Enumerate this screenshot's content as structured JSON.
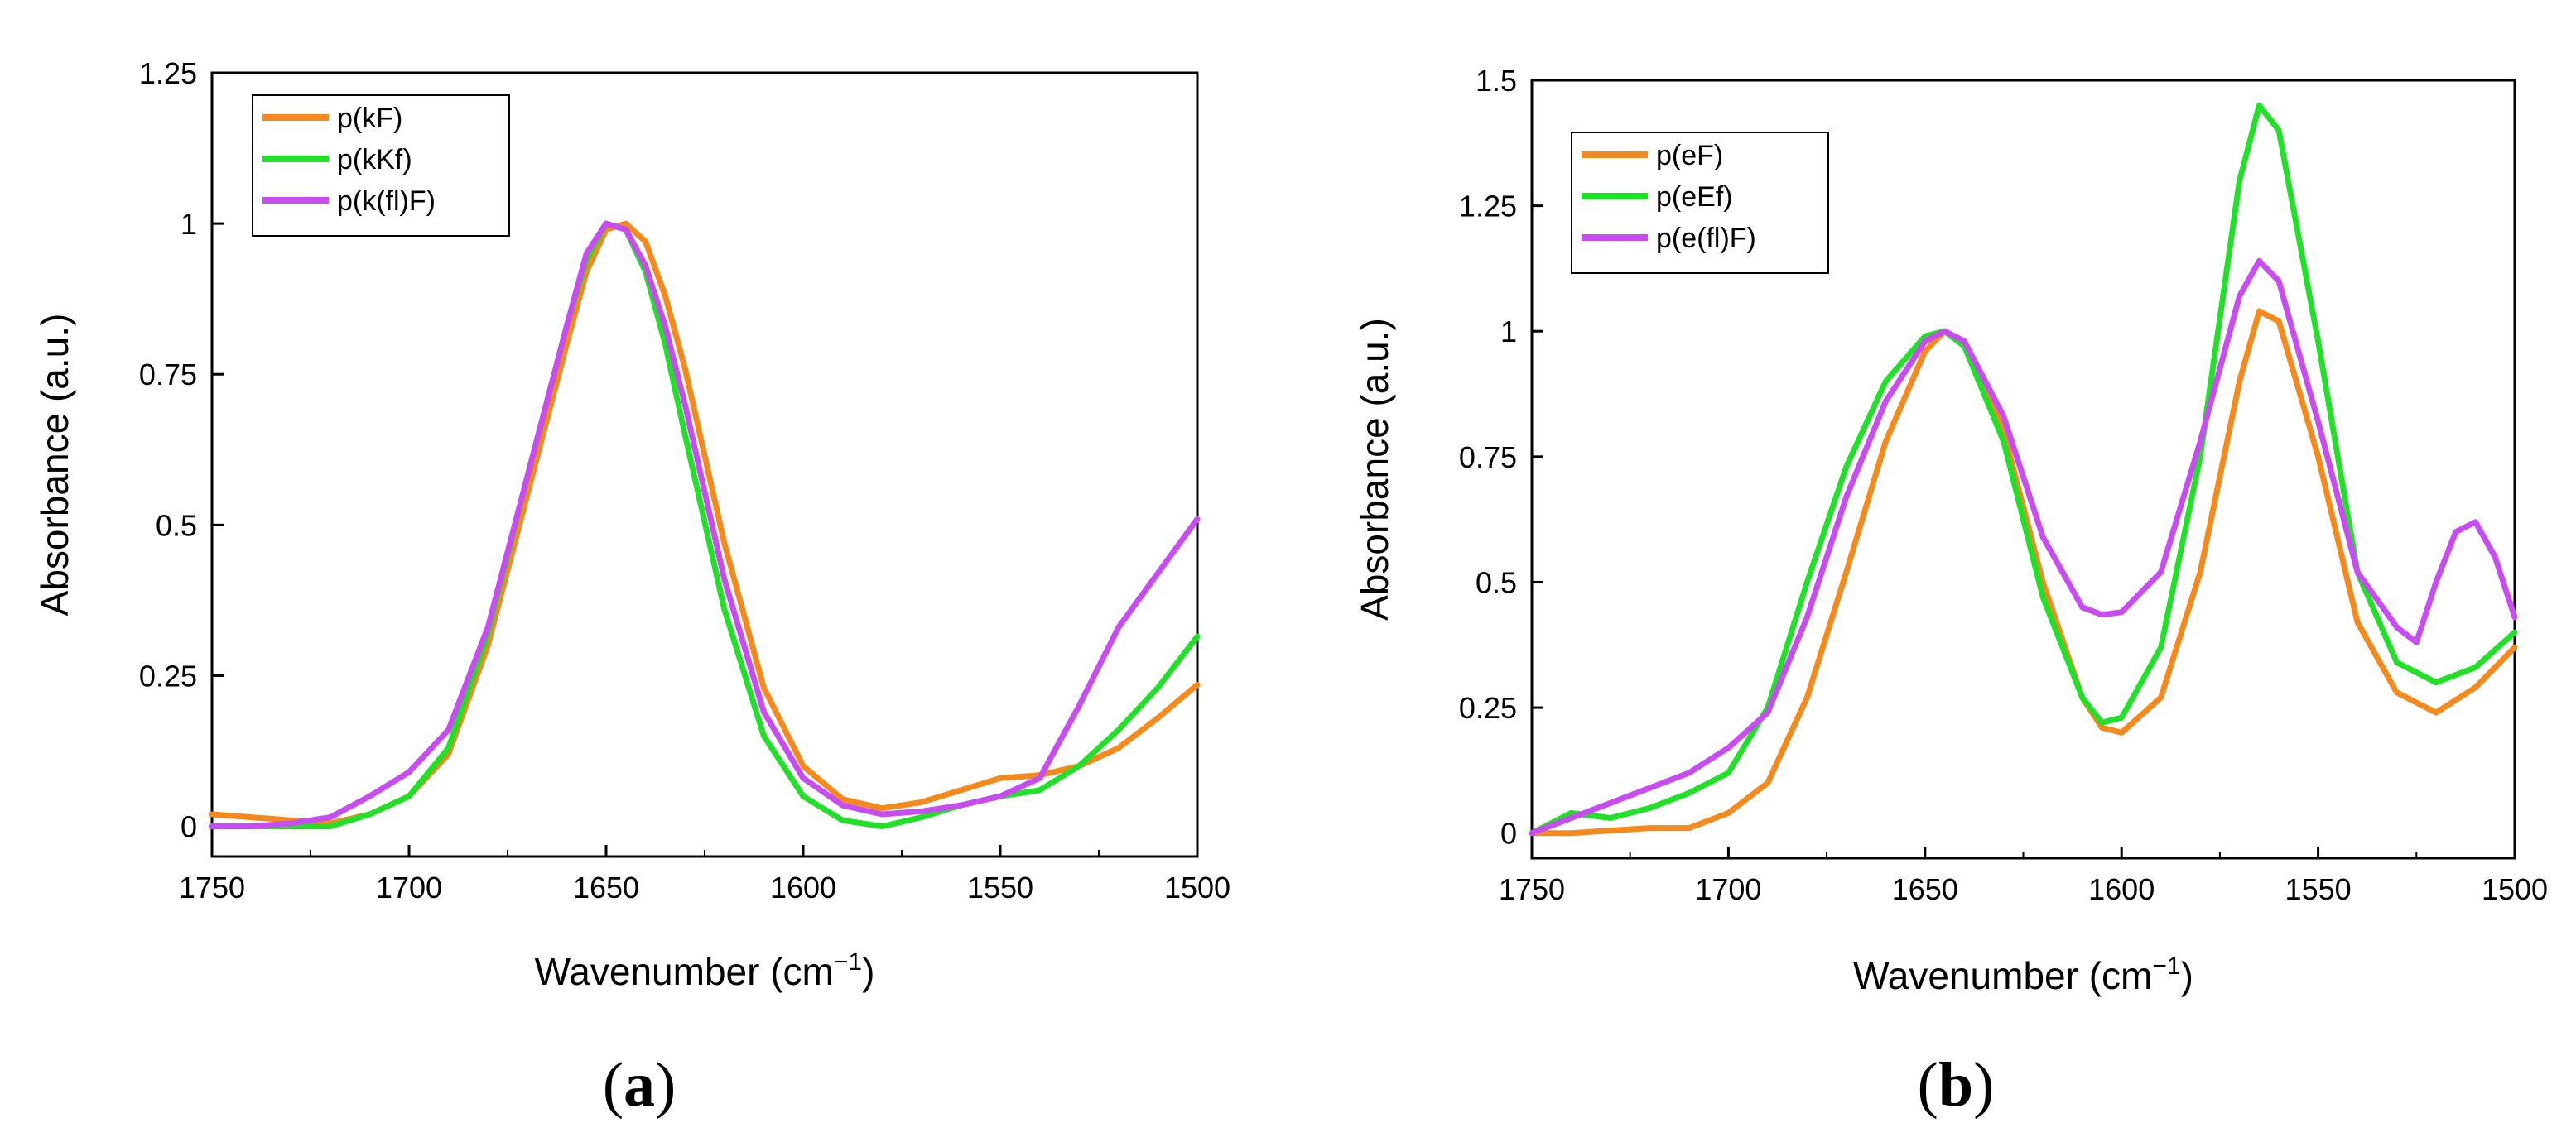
{
  "colors": {
    "orange": "#f4891c",
    "green": "#22e02a",
    "magenta": "#c84df0",
    "axis": "#000000"
  },
  "captions": {
    "a_label": "a",
    "b_label": "b",
    "open": "(",
    "close": ")"
  },
  "chart_data": [
    {
      "type": "line",
      "panel": "a",
      "xlabel": "Wavenumber (cm",
      "xlabel_sup": "−1",
      "xlabel_close": ")",
      "ylabel": "Absorbance (a.u.)",
      "xlim": [
        1750,
        1500
      ],
      "ylim": [
        -0.05,
        1.25
      ],
      "xticks": [
        1750,
        1700,
        1650,
        1600,
        1550,
        1500
      ],
      "xtick_labels": [
        "1750",
        "1700",
        "1650",
        "1600",
        "1550",
        "1500"
      ],
      "yticks": [
        0,
        0.25,
        0.5,
        0.75,
        1,
        1.25
      ],
      "ytick_labels": [
        "0",
        "0.25",
        "0.5",
        "0.75",
        "1",
        "1.25"
      ],
      "legend": "top-left",
      "series": [
        {
          "name": "p(kF)",
          "color": "#f4891c",
          "x": [
            1750,
            1740,
            1730,
            1720,
            1710,
            1700,
            1690,
            1680,
            1670,
            1660,
            1655,
            1650,
            1645,
            1640,
            1635,
            1630,
            1620,
            1610,
            1600,
            1590,
            1580,
            1570,
            1560,
            1550,
            1540,
            1530,
            1520,
            1510,
            1500
          ],
          "y": [
            0.02,
            0.015,
            0.01,
            0.005,
            0.02,
            0.05,
            0.12,
            0.3,
            0.55,
            0.8,
            0.92,
            0.99,
            1.0,
            0.97,
            0.88,
            0.76,
            0.47,
            0.23,
            0.1,
            0.045,
            0.03,
            0.04,
            0.06,
            0.08,
            0.085,
            0.1,
            0.13,
            0.18,
            0.235
          ]
        },
        {
          "name": "p(kKf)",
          "color": "#22e02a",
          "x": [
            1750,
            1740,
            1730,
            1720,
            1710,
            1700,
            1690,
            1680,
            1670,
            1660,
            1655,
            1650,
            1645,
            1640,
            1635,
            1630,
            1620,
            1610,
            1600,
            1590,
            1580,
            1570,
            1560,
            1550,
            1540,
            1530,
            1520,
            1510,
            1500
          ],
          "y": [
            0.0,
            0.0,
            0.0,
            0.0,
            0.02,
            0.05,
            0.13,
            0.32,
            0.58,
            0.83,
            0.94,
            1.0,
            0.99,
            0.92,
            0.8,
            0.65,
            0.36,
            0.15,
            0.05,
            0.01,
            0.0,
            0.015,
            0.035,
            0.05,
            0.06,
            0.1,
            0.16,
            0.23,
            0.315
          ]
        },
        {
          "name": "p(k(fl)F)",
          "color": "#c84df0",
          "x": [
            1750,
            1740,
            1730,
            1720,
            1710,
            1700,
            1690,
            1680,
            1670,
            1660,
            1655,
            1650,
            1645,
            1640,
            1635,
            1630,
            1620,
            1610,
            1600,
            1590,
            1580,
            1570,
            1560,
            1550,
            1540,
            1530,
            1520,
            1510,
            1500
          ],
          "y": [
            0.0,
            0.0,
            0.005,
            0.015,
            0.05,
            0.09,
            0.16,
            0.33,
            0.58,
            0.83,
            0.95,
            1.0,
            0.99,
            0.93,
            0.83,
            0.7,
            0.41,
            0.19,
            0.08,
            0.035,
            0.02,
            0.025,
            0.035,
            0.05,
            0.08,
            0.2,
            0.33,
            0.42,
            0.51
          ]
        }
      ]
    },
    {
      "type": "line",
      "panel": "b",
      "xlabel": "Wavenumber (cm",
      "xlabel_sup": "−1",
      "xlabel_close": ")",
      "ylabel": "Absorbance (a.u.)",
      "xlim": [
        1750,
        1500
      ],
      "ylim": [
        -0.05,
        1.5
      ],
      "xticks": [
        1750,
        1700,
        1650,
        1600,
        1550,
        1500
      ],
      "xtick_labels": [
        "1750",
        "1700",
        "1650",
        "1600",
        "1550",
        "1500"
      ],
      "yticks": [
        0,
        0.25,
        0.5,
        0.75,
        1,
        1.25,
        1.5
      ],
      "ytick_labels": [
        "0",
        "0.25",
        "0.5",
        "0.75",
        "1",
        "1.25",
        "1.5"
      ],
      "legend": "top-left",
      "series": [
        {
          "name": "p(eF)",
          "color": "#f4891c",
          "x": [
            1750,
            1740,
            1730,
            1720,
            1710,
            1700,
            1690,
            1680,
            1670,
            1660,
            1650,
            1645,
            1640,
            1630,
            1620,
            1610,
            1605,
            1600,
            1590,
            1580,
            1570,
            1565,
            1560,
            1550,
            1540,
            1530,
            1520,
            1510,
            1500
          ],
          "y": [
            0.0,
            0.0,
            0.005,
            0.01,
            0.01,
            0.04,
            0.1,
            0.27,
            0.52,
            0.78,
            0.96,
            1.0,
            0.98,
            0.8,
            0.5,
            0.27,
            0.21,
            0.2,
            0.27,
            0.52,
            0.9,
            1.04,
            1.02,
            0.75,
            0.42,
            0.28,
            0.24,
            0.29,
            0.37
          ]
        },
        {
          "name": "p(eEf)",
          "color": "#22e02a",
          "x": [
            1750,
            1740,
            1730,
            1720,
            1710,
            1700,
            1690,
            1680,
            1670,
            1660,
            1650,
            1645,
            1640,
            1630,
            1620,
            1610,
            1605,
            1600,
            1590,
            1580,
            1570,
            1565,
            1560,
            1550,
            1540,
            1530,
            1520,
            1510,
            1500
          ],
          "y": [
            0.0,
            0.04,
            0.03,
            0.05,
            0.08,
            0.12,
            0.25,
            0.5,
            0.73,
            0.9,
            0.99,
            1.0,
            0.97,
            0.78,
            0.47,
            0.27,
            0.22,
            0.23,
            0.37,
            0.75,
            1.3,
            1.45,
            1.4,
            0.98,
            0.52,
            0.34,
            0.3,
            0.33,
            0.4
          ]
        },
        {
          "name": "p(e(fl)F)",
          "color": "#c84df0",
          "x": [
            1750,
            1740,
            1730,
            1720,
            1710,
            1700,
            1690,
            1680,
            1670,
            1660,
            1650,
            1645,
            1640,
            1630,
            1620,
            1610,
            1605,
            1600,
            1590,
            1580,
            1570,
            1565,
            1560,
            1550,
            1540,
            1530,
            1525,
            1520,
            1515,
            1510,
            1505,
            1500
          ],
          "y": [
            0.0,
            0.03,
            0.06,
            0.09,
            0.12,
            0.17,
            0.24,
            0.43,
            0.67,
            0.86,
            0.98,
            1.0,
            0.98,
            0.83,
            0.59,
            0.45,
            0.435,
            0.44,
            0.52,
            0.78,
            1.07,
            1.14,
            1.1,
            0.82,
            0.52,
            0.41,
            0.38,
            0.5,
            0.6,
            0.62,
            0.55,
            0.43
          ]
        }
      ]
    }
  ]
}
